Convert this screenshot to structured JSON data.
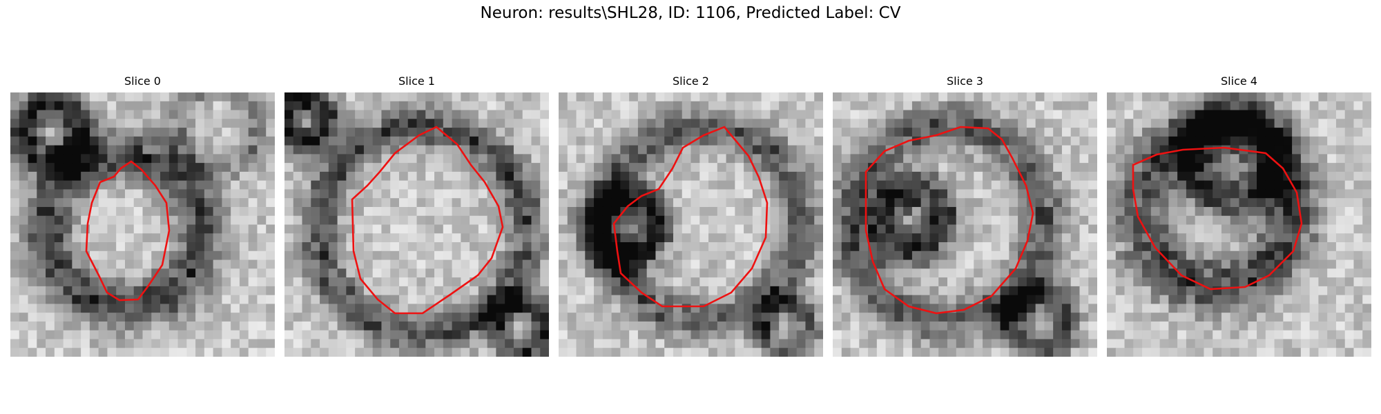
{
  "figure": {
    "title": "Neuron: results\\SHL28, ID: 1106, Predicted Label: CV"
  },
  "panels": [
    {
      "label": "Slice 0"
    },
    {
      "label": "Slice 1"
    },
    {
      "label": "Slice 2"
    },
    {
      "label": "Slice 3"
    },
    {
      "label": "Slice 4"
    }
  ],
  "colors": {
    "contour": "#ee1111",
    "background": "#ffffff"
  },
  "image": {
    "kind": "grayscale microscopy slices",
    "contour_color_name": "red outline"
  }
}
